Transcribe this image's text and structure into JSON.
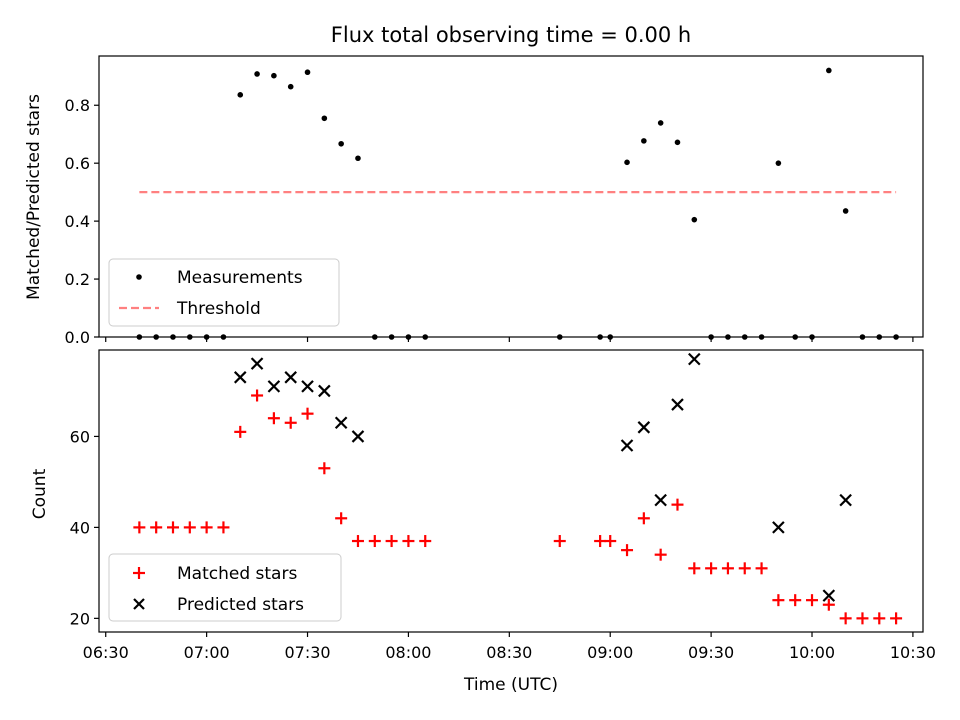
{
  "chart_data": [
    {
      "type": "scatter",
      "title": "Flux total observing time = 0.00 h",
      "xlabel": "",
      "ylabel": "Matched/Predicted stars",
      "xlim": [
        "06:28",
        "10:33"
      ],
      "ylim": [
        0,
        0.97
      ],
      "yticks": [
        0.0,
        0.2,
        0.4,
        0.6,
        0.8
      ],
      "ytick_labels": [
        "0.0",
        "0.2",
        "0.4",
        "0.6",
        "0.8"
      ],
      "legend": {
        "position": "lower-left",
        "entries": [
          "Measurements",
          "Threshold"
        ]
      },
      "series": [
        {
          "name": "Measurements",
          "marker": "dot",
          "color": "#000000",
          "points": [
            [
              "06:40",
              0.0
            ],
            [
              "06:45",
              0.0
            ],
            [
              "06:50",
              0.0
            ],
            [
              "06:55",
              0.0
            ],
            [
              "07:00",
              0.0
            ],
            [
              "07:05",
              0.0
            ],
            [
              "07:10",
              0.836
            ],
            [
              "07:15",
              0.908
            ],
            [
              "07:20",
              0.902
            ],
            [
              "07:25",
              0.864
            ],
            [
              "07:30",
              0.914
            ],
            [
              "07:35",
              0.755
            ],
            [
              "07:40",
              0.667
            ],
            [
              "07:45",
              0.617
            ],
            [
              "07:50",
              0.0
            ],
            [
              "07:55",
              0.0
            ],
            [
              "08:00",
              0.0
            ],
            [
              "08:05",
              0.0
            ],
            [
              "08:45",
              0.0
            ],
            [
              "08:57",
              0.0
            ],
            [
              "09:00",
              0.0
            ],
            [
              "09:05",
              0.603
            ],
            [
              "09:10",
              0.677
            ],
            [
              "09:15",
              0.739
            ],
            [
              "09:20",
              0.672
            ],
            [
              "09:25",
              0.405
            ],
            [
              "09:30",
              0.0
            ],
            [
              "09:35",
              0.0
            ],
            [
              "09:40",
              0.0
            ],
            [
              "09:45",
              0.0
            ],
            [
              "09:50",
              0.6
            ],
            [
              "09:55",
              0.0
            ],
            [
              "10:00",
              0.0
            ],
            [
              "10:05",
              0.92
            ],
            [
              "10:10",
              0.435
            ],
            [
              "10:15",
              0.0
            ],
            [
              "10:20",
              0.0
            ],
            [
              "10:25",
              0.0
            ]
          ]
        },
        {
          "name": "Threshold",
          "line": "dashed",
          "color": "#ff8080",
          "points": [
            [
              "06:40",
              0.5
            ],
            [
              "10:25",
              0.5
            ]
          ]
        }
      ]
    },
    {
      "type": "scatter",
      "title": "",
      "xlabel": "Time (UTC)",
      "ylabel": "Count",
      "xlim": [
        "06:28",
        "10:33"
      ],
      "ylim": [
        17,
        79
      ],
      "yticks": [
        20,
        40,
        60
      ],
      "ytick_labels": [
        "20",
        "40",
        "60"
      ],
      "xticks": [
        "06:30",
        "07:00",
        "07:30",
        "08:00",
        "08:30",
        "09:00",
        "09:30",
        "10:00",
        "10:30"
      ],
      "legend": {
        "position": "lower-left",
        "entries": [
          "Matched stars",
          "Predicted stars"
        ]
      },
      "series": [
        {
          "name": "Matched stars",
          "marker": "plus",
          "color": "#ff0000",
          "points": [
            [
              "06:40",
              40
            ],
            [
              "06:45",
              40
            ],
            [
              "06:50",
              40
            ],
            [
              "06:55",
              40
            ],
            [
              "07:00",
              40
            ],
            [
              "07:05",
              40
            ],
            [
              "07:10",
              61
            ],
            [
              "07:15",
              69
            ],
            [
              "07:20",
              64
            ],
            [
              "07:25",
              63
            ],
            [
              "07:30",
              65
            ],
            [
              "07:35",
              53
            ],
            [
              "07:40",
              42
            ],
            [
              "07:45",
              37
            ],
            [
              "07:50",
              37
            ],
            [
              "07:55",
              37
            ],
            [
              "08:00",
              37
            ],
            [
              "08:05",
              37
            ],
            [
              "08:45",
              37
            ],
            [
              "08:57",
              37
            ],
            [
              "09:00",
              37
            ],
            [
              "09:05",
              35
            ],
            [
              "09:10",
              42
            ],
            [
              "09:15",
              34
            ],
            [
              "09:20",
              45
            ],
            [
              "09:25",
              31
            ],
            [
              "09:30",
              31
            ],
            [
              "09:35",
              31
            ],
            [
              "09:40",
              31
            ],
            [
              "09:45",
              31
            ],
            [
              "09:50",
              24
            ],
            [
              "09:55",
              24
            ],
            [
              "10:00",
              24
            ],
            [
              "10:05",
              23
            ],
            [
              "10:10",
              20
            ],
            [
              "10:15",
              20
            ],
            [
              "10:20",
              20
            ],
            [
              "10:25",
              20
            ]
          ]
        },
        {
          "name": "Predicted stars",
          "marker": "x",
          "color": "#000000",
          "points": [
            [
              "07:10",
              73
            ],
            [
              "07:15",
              76
            ],
            [
              "07:20",
              71
            ],
            [
              "07:25",
              73
            ],
            [
              "07:30",
              71
            ],
            [
              "07:35",
              70
            ],
            [
              "07:40",
              63
            ],
            [
              "07:45",
              60
            ],
            [
              "09:05",
              58
            ],
            [
              "09:10",
              62
            ],
            [
              "09:15",
              46
            ],
            [
              "09:20",
              67
            ],
            [
              "09:25",
              77
            ],
            [
              "09:50",
              40
            ],
            [
              "10:05",
              25
            ],
            [
              "10:10",
              46
            ]
          ]
        }
      ]
    }
  ]
}
